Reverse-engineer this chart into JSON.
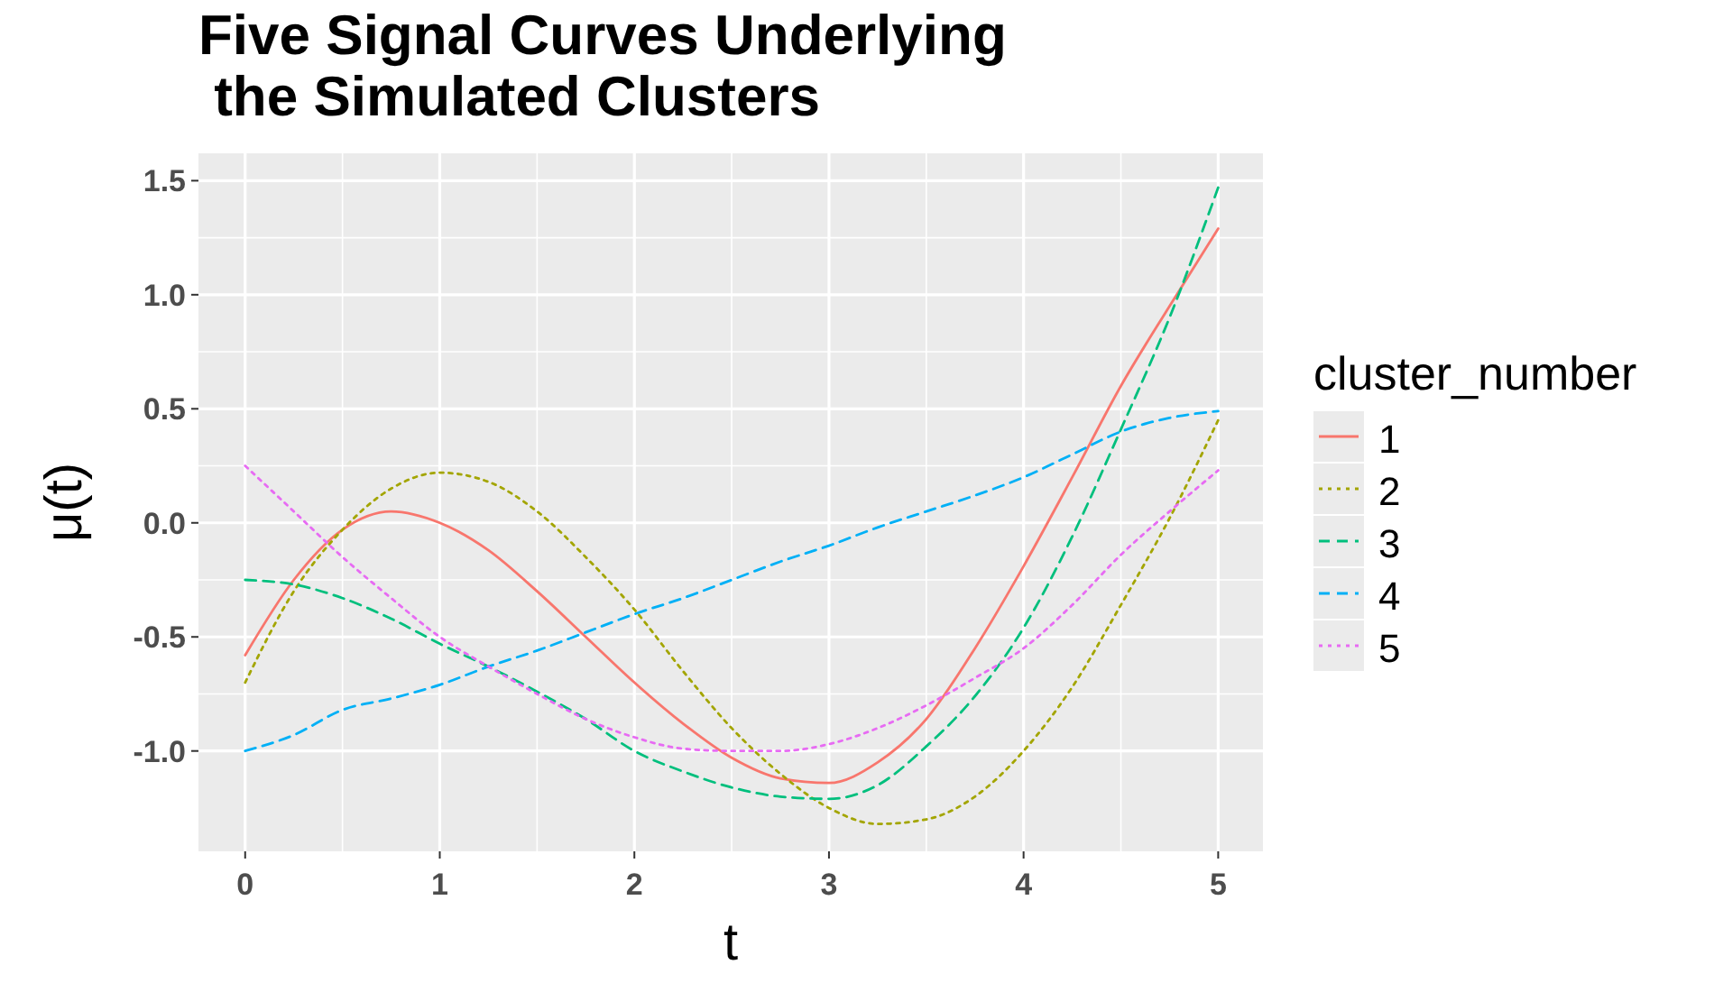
{
  "chart_data": {
    "type": "line",
    "title": "Five Signal Curves Underlying\n the Simulated Clusters",
    "xlabel": "t",
    "ylabel": "μ(t)",
    "legend_title": "cluster_number",
    "legend": "right",
    "grid": true,
    "x": [
      0,
      0.25,
      0.5,
      0.75,
      1,
      1.25,
      1.5,
      1.75,
      2,
      2.25,
      2.5,
      2.75,
      3,
      3.25,
      3.5,
      3.75,
      4,
      4.25,
      4.5,
      4.75,
      5
    ],
    "xlim": [
      -0.24,
      5.23
    ],
    "xticks": [
      0,
      1,
      2,
      3,
      4,
      5
    ],
    "ylim": [
      -1.44,
      1.62
    ],
    "yticks": [
      {
        "value": -1,
        "label": "-1.0"
      },
      {
        "value": -0.5,
        "label": "-0.5"
      },
      {
        "value": 0,
        "label": "0.0"
      },
      {
        "value": 0.5,
        "label": "0.5"
      },
      {
        "value": 1,
        "label": "1.0"
      },
      {
        "value": 1.5,
        "label": "1.5"
      }
    ],
    "series": [
      {
        "name": "1",
        "color": "#f8766d",
        "line_style": "solid",
        "values": [
          -0.58,
          -0.25,
          -0.03,
          0.05,
          0.0,
          -0.12,
          -0.3,
          -0.5,
          -0.7,
          -0.88,
          -1.03,
          -1.12,
          -1.14,
          -1.05,
          -0.86,
          -0.55,
          -0.19,
          0.2,
          0.6,
          0.95,
          1.29
        ]
      },
      {
        "name": "2",
        "color": "#a3a500",
        "line_style": "dotted",
        "values": [
          -0.7,
          -0.3,
          -0.03,
          0.15,
          0.22,
          0.18,
          0.05,
          -0.15,
          -0.38,
          -0.65,
          -0.9,
          -1.1,
          -1.25,
          -1.32,
          -1.3,
          -1.2,
          -1.0,
          -0.72,
          -0.36,
          0.02,
          0.45
        ]
      },
      {
        "name": "3",
        "color": "#00bf7d",
        "line_style": "dashed",
        "values": [
          -0.25,
          -0.27,
          -0.33,
          -0.42,
          -0.53,
          -0.63,
          -0.74,
          -0.86,
          -1.0,
          -1.09,
          -1.16,
          -1.2,
          -1.21,
          -1.15,
          -0.98,
          -0.76,
          -0.46,
          -0.06,
          0.41,
          0.9,
          1.47
        ]
      },
      {
        "name": "4",
        "color": "#00b0f6",
        "line_style": "dashed",
        "values": [
          -1.0,
          -0.93,
          -0.82,
          -0.77,
          -0.71,
          -0.63,
          -0.56,
          -0.48,
          -0.4,
          -0.33,
          -0.25,
          -0.17,
          -0.1,
          -0.02,
          0.05,
          0.12,
          0.2,
          0.3,
          0.4,
          0.46,
          0.49
        ]
      },
      {
        "name": "5",
        "color": "#e76bf3",
        "line_style": "dotted",
        "values": [
          0.25,
          0.05,
          -0.15,
          -0.33,
          -0.5,
          -0.63,
          -0.75,
          -0.86,
          -0.94,
          -0.99,
          -1.0,
          -1.0,
          -0.97,
          -0.9,
          -0.8,
          -0.68,
          -0.55,
          -0.36,
          -0.14,
          0.05,
          0.23
        ]
      }
    ]
  }
}
